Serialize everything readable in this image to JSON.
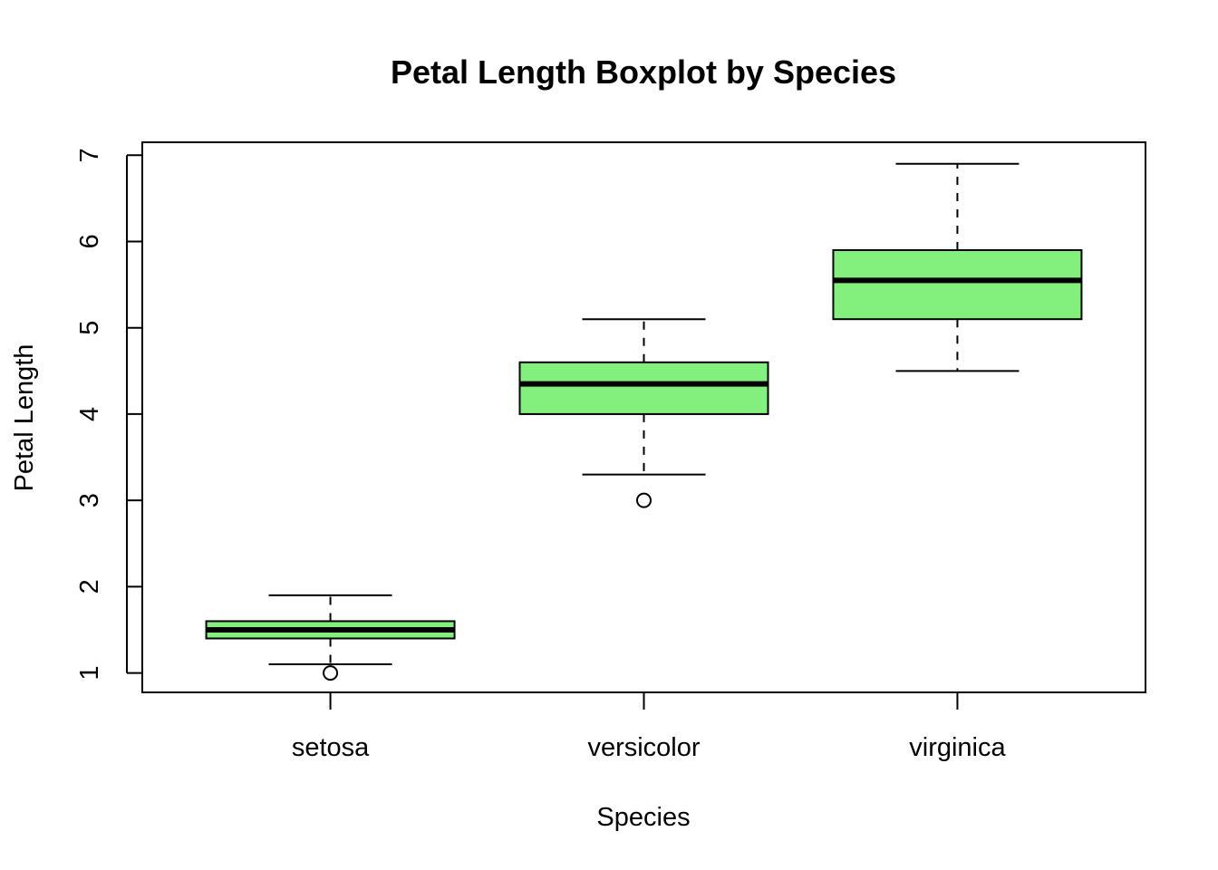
{
  "chart_data": {
    "type": "boxplot",
    "title": "Petal Length Boxplot by Species",
    "xlabel": "Species",
    "ylabel": "Petal Length",
    "ylim": [
      0.775,
      7.15
    ],
    "yticks": [
      "1",
      "2",
      "3",
      "4",
      "5",
      "6",
      "7"
    ],
    "categories": [
      "setosa",
      "versicolor",
      "virginica"
    ],
    "box_color": "#83ef7d",
    "boxes": [
      {
        "name": "setosa",
        "whisker_low": 1.1,
        "q1": 1.4,
        "median": 1.5,
        "q3": 1.6,
        "whisker_high": 1.9,
        "outliers": [
          1.0
        ]
      },
      {
        "name": "versicolor",
        "whisker_low": 3.3,
        "q1": 4.0,
        "median": 4.35,
        "q3": 4.6,
        "whisker_high": 5.1,
        "outliers": [
          3.0
        ]
      },
      {
        "name": "virginica",
        "whisker_low": 4.5,
        "q1": 5.1,
        "median": 5.55,
        "q3": 5.9,
        "whisker_high": 6.9,
        "outliers": []
      }
    ],
    "grid": false,
    "legend": "none"
  }
}
